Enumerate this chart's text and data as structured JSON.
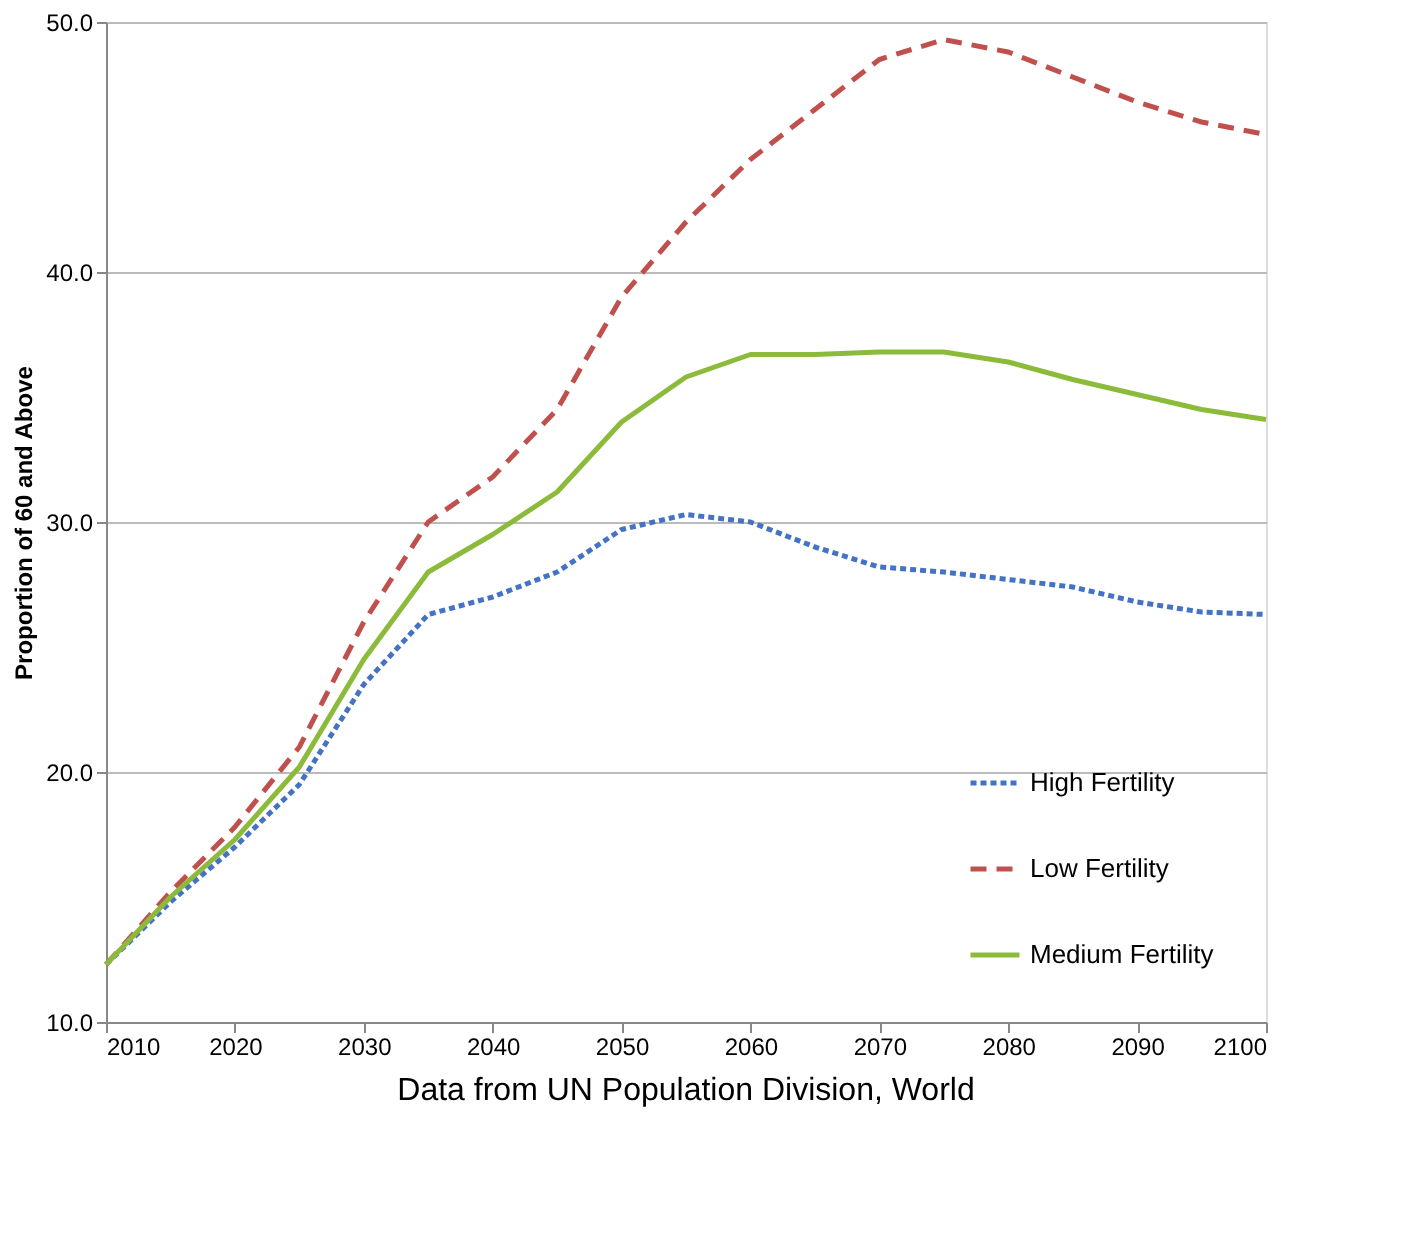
{
  "chart_data": {
    "type": "line",
    "ylabel": "Proportion of 60 and Above",
    "x": [
      2010,
      2015,
      2020,
      2025,
      2030,
      2035,
      2040,
      2045,
      2050,
      2055,
      2060,
      2065,
      2070,
      2075,
      2080,
      2085,
      2090,
      2095,
      2100
    ],
    "series": [
      {
        "name": "High Fertility",
        "color": "#4472c4",
        "line_style": "dotted",
        "values": [
          12.3,
          14.8,
          17.0,
          19.5,
          23.5,
          26.3,
          27.0,
          28.0,
          29.7,
          30.3,
          30.0,
          29.0,
          28.2,
          28.0,
          27.7,
          27.4,
          26.8,
          26.4,
          26.3
        ]
      },
      {
        "name": "Low Fertility",
        "color": "#c0504d",
        "line_style": "dashed",
        "values": [
          12.3,
          15.2,
          17.8,
          21.0,
          26.0,
          30.0,
          31.8,
          34.5,
          39.0,
          42.0,
          44.5,
          46.5,
          48.5,
          49.3,
          48.8,
          47.8,
          46.8,
          46.0,
          45.5
        ]
      },
      {
        "name": "Medium Fertility",
        "color": "#8cbb3c",
        "line_style": "solid",
        "values": [
          12.3,
          15.0,
          17.3,
          20.2,
          24.5,
          28.0,
          29.5,
          31.2,
          34.0,
          35.8,
          36.7,
          36.7,
          36.8,
          36.8,
          36.4,
          35.7,
          35.1,
          34.5,
          34.1
        ]
      }
    ],
    "xlim": [
      2010,
      2100
    ],
    "xticks": [
      2010,
      2020,
      2030,
      2040,
      2050,
      2060,
      2070,
      2080,
      2090,
      2100
    ],
    "ylim": [
      10,
      50
    ],
    "yticks": [
      {
        "value": 10,
        "label": "10.0"
      },
      {
        "value": 20,
        "label": "20.0"
      },
      {
        "value": 30,
        "label": "30.0"
      },
      {
        "value": 40,
        "label": "40.0"
      },
      {
        "value": 50,
        "label": "50.0"
      }
    ],
    "grid": "y",
    "legend": "bottom right",
    "marker": "none",
    "annotations": [
      "Data from UN Population Division, World"
    ]
  }
}
